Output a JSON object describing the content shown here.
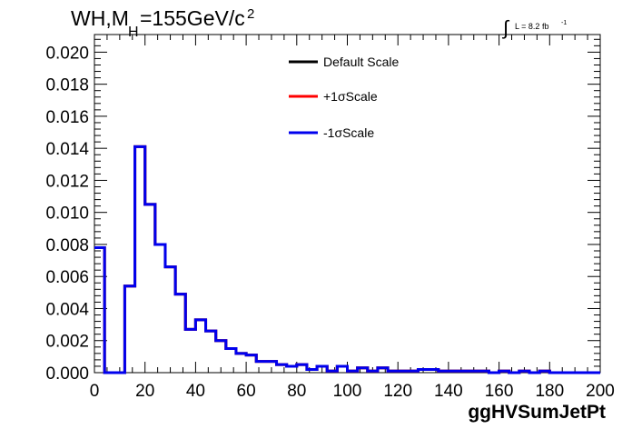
{
  "chart_data": {
    "type": "line",
    "title_main": "WH,M",
    "title_sub": "H",
    "title_mass": "=155GeV/c",
    "title_sup": "2",
    "lumi_prefix": "L = 8.2 fb",
    "lumi_sup": "-1",
    "xlabel": "ggHVSumJetPt",
    "ylabel": "",
    "xlim": [
      0,
      200
    ],
    "ylim": [
      0,
      0.0211
    ],
    "x_ticks": [
      "0",
      "20",
      "40",
      "60",
      "80",
      "100",
      "120",
      "140",
      "160",
      "180",
      "200"
    ],
    "y_ticks": [
      "0.000",
      "0.002",
      "0.004",
      "0.006",
      "0.008",
      "0.010",
      "0.012",
      "0.014",
      "0.016",
      "0.018",
      "0.020"
    ],
    "bin_width": 4,
    "series": [
      {
        "name": "Default Scale",
        "color": "#000000",
        "values": [
          0.0078,
          0,
          0,
          0.0054,
          0.0141,
          0.0105,
          0.008,
          0.0066,
          0.0049,
          0.0027,
          0.0033,
          0.0026,
          0.002,
          0.0015,
          0.0012,
          0.0011,
          0.0007,
          0.0007,
          0.0005,
          0.0004,
          0.0005,
          0.0002,
          0.0004,
          0.0001,
          0.0004,
          0.0001,
          0.0003,
          0.0001,
          0.0003,
          0.0001,
          0.0001,
          0.0001,
          0.0002,
          0.0002,
          0.0001,
          0.0001,
          0.0001,
          0.0001,
          0.0001,
          0.0,
          0.0001,
          0.0,
          0.0001,
          0.0,
          0.0001,
          0.0,
          0.0,
          0.0,
          0.0,
          0.0
        ]
      },
      {
        "name": "+1σScale",
        "color": "#ff0000",
        "values": [
          0.0078,
          0,
          0,
          0.0054,
          0.0141,
          0.0105,
          0.008,
          0.0066,
          0.0049,
          0.0027,
          0.0033,
          0.0026,
          0.002,
          0.0015,
          0.0012,
          0.0011,
          0.0007,
          0.0007,
          0.0005,
          0.0004,
          0.0005,
          0.0002,
          0.0004,
          0.0001,
          0.0004,
          0.0001,
          0.0003,
          0.0001,
          0.0003,
          0.0001,
          0.0001,
          0.0001,
          0.0002,
          0.0002,
          0.0001,
          0.0001,
          0.0001,
          0.0001,
          0.0001,
          0.0,
          0.0001,
          0.0,
          0.0001,
          0.0,
          0.0001,
          0.0,
          0.0,
          0.0,
          0.0,
          0.0
        ]
      },
      {
        "name": "-1σScale",
        "color": "#0000ee",
        "values": [
          0.0078,
          0,
          0,
          0.0054,
          0.0141,
          0.0105,
          0.008,
          0.0066,
          0.0049,
          0.0027,
          0.0033,
          0.0026,
          0.002,
          0.0015,
          0.0012,
          0.0011,
          0.0007,
          0.0007,
          0.0005,
          0.0004,
          0.0005,
          0.0002,
          0.0004,
          0.0001,
          0.0004,
          0.0001,
          0.0003,
          0.0001,
          0.0003,
          0.0001,
          0.0001,
          0.0001,
          0.0002,
          0.0002,
          0.0001,
          0.0001,
          0.0001,
          0.0001,
          0.0001,
          0.0,
          0.0001,
          0.0,
          0.0001,
          0.0,
          0.0001,
          0.0,
          0.0,
          0.0,
          0.0,
          0.0
        ]
      }
    ],
    "legend_position": "top-center",
    "grid": false
  }
}
